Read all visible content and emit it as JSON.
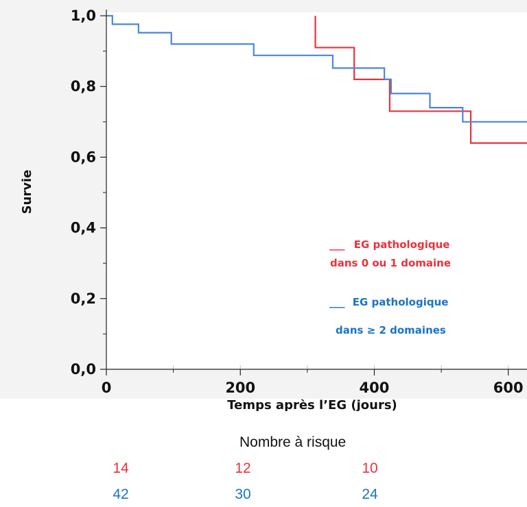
{
  "chart_data": {
    "type": "line",
    "title": "",
    "xlabel": "Temps après l’EG (jours)",
    "ylabel": "Survie",
    "xlim": [
      0,
      630
    ],
    "ylim": [
      0,
      1
    ],
    "xticks": [
      "0",
      "200",
      "400",
      "600"
    ],
    "yticks": [
      "0,0",
      "0,2",
      "0,4",
      "0,6",
      "0,8",
      "1,0"
    ],
    "grid": false,
    "legend_position": "right",
    "series": [
      {
        "name": "EG pathologique dans 0 ou 1 domaine",
        "color": "#e8323c",
        "step": true,
        "x": [
          312,
          312,
          370,
          423,
          544,
          630
        ],
        "y": [
          1.0,
          0.91,
          0.82,
          0.73,
          0.64,
          0.64
        ]
      },
      {
        "name": "EG pathologique dans ≥ 2 domaines",
        "color": "#4a86dc",
        "step": true,
        "x": [
          9,
          48,
          97,
          220,
          338,
          415,
          425,
          483,
          532,
          630
        ],
        "y": [
          0.976,
          0.952,
          0.92,
          0.888,
          0.852,
          0.82,
          0.78,
          0.74,
          0.7,
          0.7
        ]
      }
    ],
    "legend": [
      {
        "line": "___",
        "label": "EG  pathologique",
        "label2": "dans 0 ou 1 domaine",
        "color": "#e8323c"
      },
      {
        "line": "___",
        "label": "EG pathologique",
        "label2": "dans ≥ 2 domaines",
        "color": "#1a73c8"
      }
    ],
    "risk_table": {
      "title": "Nombre à risque",
      "rows": [
        {
          "color": "#e8323c",
          "values": [
            "14",
            "12",
            "10"
          ]
        },
        {
          "color": "#1a73c8",
          "values": [
            "42",
            "30",
            "24"
          ]
        }
      ]
    }
  }
}
